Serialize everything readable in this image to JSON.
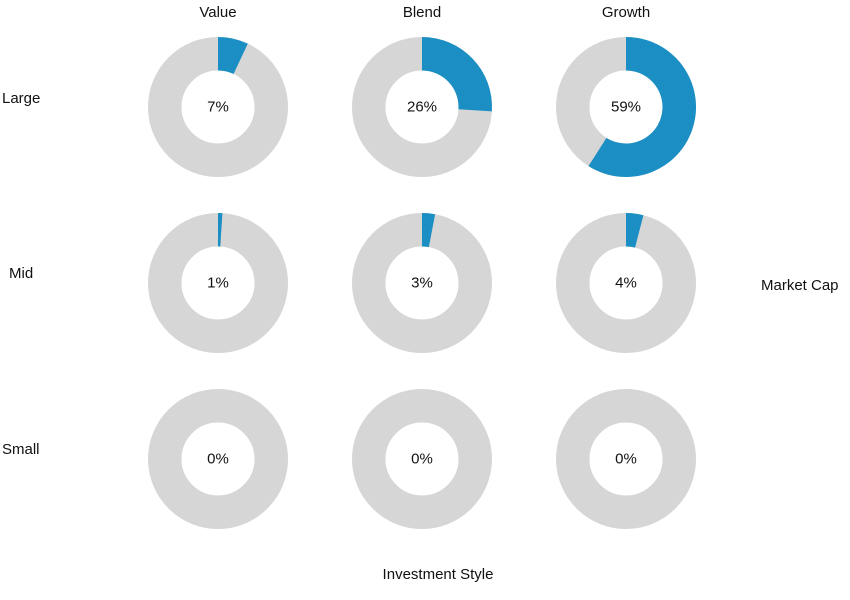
{
  "chart_data": {
    "type": "donut-grid",
    "columns": [
      "Value",
      "Blend",
      "Growth"
    ],
    "rows": [
      "Large",
      "Mid",
      "Small"
    ],
    "values": [
      [
        7,
        26,
        59
      ],
      [
        1,
        3,
        4
      ],
      [
        0,
        0,
        0
      ]
    ],
    "value_labels": [
      [
        "7%",
        "26%",
        "59%"
      ],
      [
        "1%",
        "3%",
        "4%"
      ],
      [
        "0%",
        "0%",
        "0%"
      ]
    ],
    "xlabel": "Investment Style",
    "ylabel": "Market Cap",
    "max": 100,
    "colors": {
      "filled": "#1b8fc4",
      "empty": "#d6d6d6"
    }
  }
}
